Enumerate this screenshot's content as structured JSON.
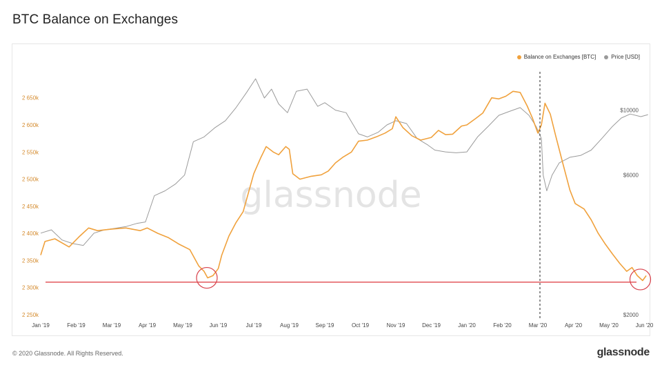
{
  "page": {
    "title": "BTC Balance on Exchanges",
    "copyright": "© 2020 Glassnode. All Rights Reserved.",
    "logo": "glassnode"
  },
  "colors": {
    "balance": "#f0a13c",
    "price": "#9a9a9a",
    "support_line": "#e0474c",
    "marker_circle": "#d8404a",
    "axis_text": "#d48a2c",
    "price_axis_text": "#555555"
  },
  "chart_data": {
    "type": "line",
    "title": "BTC Balance on Exchanges",
    "watermark": "glassnode",
    "legend": [
      "Balance on Exchanges [BTC]",
      "Price [USD]"
    ],
    "legend_placement": "top-right",
    "grid": false,
    "x_ticks": [
      "Jan '19",
      "Feb '19",
      "Mar '19",
      "Apr '19",
      "May '19",
      "Jun '19",
      "Jul '19",
      "Aug '19",
      "Sep '19",
      "Oct '19",
      "Nov '19",
      "Dec '19",
      "Jan '20",
      "Feb '20",
      "Mar '20",
      "Apr '20",
      "May '20",
      "Jun '20"
    ],
    "y_left": {
      "ticks": [
        "2 250k",
        "2 300k",
        "2 350k",
        "2 400k",
        "2 450k",
        "2 500k",
        "2 550k",
        "2 600k",
        "2 650k"
      ],
      "range": [
        2250,
        2670
      ]
    },
    "y_right": {
      "ticks": [
        "$2000",
        "$6000",
        "$10000"
      ],
      "scale": "log",
      "range": [
        2000,
        12000
      ]
    },
    "support_level": 2310,
    "event_marker": "Mar '20",
    "highlighted_lows": [
      {
        "x": "May '19",
        "y": 2318
      },
      {
        "x": "Jun '20",
        "y": 2315
      }
    ],
    "series": [
      {
        "name": "Balance on Exchanges [BTC]",
        "axis": "left",
        "points": [
          [
            0,
            2360
          ],
          [
            0.12,
            2385
          ],
          [
            0.4,
            2390
          ],
          [
            0.8,
            2375
          ],
          [
            1.1,
            2395
          ],
          [
            1.35,
            2410
          ],
          [
            1.6,
            2405
          ],
          [
            2.0,
            2408
          ],
          [
            2.4,
            2410
          ],
          [
            2.8,
            2405
          ],
          [
            3.0,
            2410
          ],
          [
            3.3,
            2400
          ],
          [
            3.6,
            2392
          ],
          [
            3.9,
            2380
          ],
          [
            4.2,
            2370
          ],
          [
            4.45,
            2340
          ],
          [
            4.6,
            2330
          ],
          [
            4.7,
            2318
          ],
          [
            4.85,
            2322
          ],
          [
            5.0,
            2335
          ],
          [
            5.1,
            2360
          ],
          [
            5.3,
            2395
          ],
          [
            5.5,
            2420
          ],
          [
            5.7,
            2440
          ],
          [
            5.85,
            2475
          ],
          [
            6.0,
            2510
          ],
          [
            6.2,
            2540
          ],
          [
            6.35,
            2560
          ],
          [
            6.55,
            2550
          ],
          [
            6.7,
            2545
          ],
          [
            6.9,
            2560
          ],
          [
            7.0,
            2555
          ],
          [
            7.1,
            2510
          ],
          [
            7.3,
            2500
          ],
          [
            7.6,
            2505
          ],
          [
            7.9,
            2508
          ],
          [
            8.1,
            2515
          ],
          [
            8.3,
            2530
          ],
          [
            8.5,
            2540
          ],
          [
            8.75,
            2550
          ],
          [
            8.95,
            2570
          ],
          [
            9.2,
            2572
          ],
          [
            9.45,
            2578
          ],
          [
            9.7,
            2585
          ],
          [
            9.9,
            2593
          ],
          [
            10.0,
            2615
          ],
          [
            10.2,
            2595
          ],
          [
            10.45,
            2580
          ],
          [
            10.7,
            2572
          ],
          [
            11.0,
            2577
          ],
          [
            11.2,
            2590
          ],
          [
            11.4,
            2582
          ],
          [
            11.6,
            2583
          ],
          [
            11.85,
            2598
          ],
          [
            12.0,
            2600
          ],
          [
            12.25,
            2612
          ],
          [
            12.45,
            2622
          ],
          [
            12.7,
            2650
          ],
          [
            12.9,
            2648
          ],
          [
            13.1,
            2653
          ],
          [
            13.3,
            2662
          ],
          [
            13.5,
            2660
          ],
          [
            13.7,
            2635
          ],
          [
            13.85,
            2612
          ],
          [
            14.0,
            2585
          ],
          [
            14.1,
            2600
          ],
          [
            14.2,
            2640
          ],
          [
            14.35,
            2620
          ],
          [
            14.5,
            2580
          ],
          [
            14.7,
            2530
          ],
          [
            14.9,
            2480
          ],
          [
            15.05,
            2455
          ],
          [
            15.3,
            2445
          ],
          [
            15.5,
            2425
          ],
          [
            15.7,
            2400
          ],
          [
            15.9,
            2380
          ],
          [
            16.1,
            2362
          ],
          [
            16.3,
            2345
          ],
          [
            16.5,
            2330
          ],
          [
            16.65,
            2337
          ],
          [
            16.8,
            2322
          ],
          [
            16.95,
            2313
          ],
          [
            17.05,
            2322
          ]
        ]
      },
      {
        "name": "Price [USD]",
        "axis": "right",
        "points": [
          [
            0,
            3800
          ],
          [
            0.3,
            3900
          ],
          [
            0.6,
            3600
          ],
          [
            0.9,
            3500
          ],
          [
            1.2,
            3450
          ],
          [
            1.5,
            3800
          ],
          [
            1.8,
            3900
          ],
          [
            2.1,
            3950
          ],
          [
            2.4,
            4000
          ],
          [
            2.7,
            4100
          ],
          [
            2.95,
            4150
          ],
          [
            3.2,
            5100
          ],
          [
            3.5,
            5300
          ],
          [
            3.8,
            5600
          ],
          [
            4.05,
            6000
          ],
          [
            4.3,
            7800
          ],
          [
            4.6,
            8100
          ],
          [
            4.9,
            8700
          ],
          [
            5.2,
            9200
          ],
          [
            5.5,
            10200
          ],
          [
            5.8,
            11500
          ],
          [
            6.05,
            12800
          ],
          [
            6.3,
            11000
          ],
          [
            6.5,
            11800
          ],
          [
            6.7,
            10500
          ],
          [
            6.95,
            9800
          ],
          [
            7.2,
            11600
          ],
          [
            7.5,
            11800
          ],
          [
            7.8,
            10300
          ],
          [
            8.0,
            10600
          ],
          [
            8.3,
            10000
          ],
          [
            8.6,
            9800
          ],
          [
            8.95,
            8300
          ],
          [
            9.2,
            8100
          ],
          [
            9.5,
            8400
          ],
          [
            9.75,
            8900
          ],
          [
            10.0,
            9200
          ],
          [
            10.3,
            9000
          ],
          [
            10.6,
            8000
          ],
          [
            10.9,
            7600
          ],
          [
            11.1,
            7300
          ],
          [
            11.4,
            7200
          ],
          [
            11.7,
            7150
          ],
          [
            12.0,
            7200
          ],
          [
            12.3,
            8100
          ],
          [
            12.6,
            8800
          ],
          [
            12.9,
            9600
          ],
          [
            13.2,
            9900
          ],
          [
            13.5,
            10200
          ],
          [
            13.75,
            9600
          ],
          [
            13.95,
            8800
          ],
          [
            14.1,
            8000
          ],
          [
            14.15,
            6000
          ],
          [
            14.25,
            5300
          ],
          [
            14.4,
            6000
          ],
          [
            14.6,
            6600
          ],
          [
            14.9,
            6900
          ],
          [
            15.2,
            7000
          ],
          [
            15.5,
            7300
          ],
          [
            15.8,
            8000
          ],
          [
            16.1,
            8800
          ],
          [
            16.35,
            9400
          ],
          [
            16.6,
            9700
          ],
          [
            16.9,
            9500
          ],
          [
            17.1,
            9650
          ]
        ]
      }
    ]
  }
}
